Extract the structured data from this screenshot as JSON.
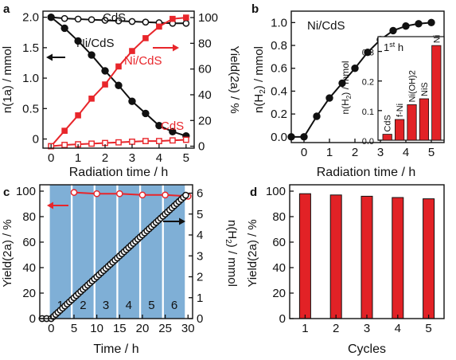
{
  "colors": {
    "black": "#111111",
    "red": "#e8262b",
    "bar_red": "#e22226",
    "band_blue": "#7fafd6"
  },
  "chart_data": [
    {
      "panel": "a",
      "type": "line",
      "xlabel": "Radiation time / h",
      "ylabel_left": "n(1a) / mmol",
      "ylabel_right": "Yield(2a) / %",
      "xlim": [
        -0.3,
        5.3
      ],
      "ylim_left": [
        -0.15,
        2.1
      ],
      "ylim_right": [
        -1.5,
        105
      ],
      "x_ticks": [
        "0",
        "1",
        "2",
        "3",
        "4",
        "5"
      ],
      "y_left_ticks": [
        "0",
        "0.5",
        "1.0",
        "1.5",
        "2.0"
      ],
      "y_right_ticks": [
        "0",
        "20",
        "40",
        "60",
        "80",
        "100"
      ],
      "series": [
        {
          "name": "CdS",
          "axis": "left",
          "color": "#111111",
          "marker": "open-circle",
          "x": [
            0,
            0.5,
            1,
            1.5,
            2,
            2.5,
            3,
            3.5,
            4,
            4.5,
            5
          ],
          "y": [
            2.0,
            1.98,
            1.97,
            1.96,
            1.95,
            1.94,
            1.93,
            1.92,
            1.91,
            1.9,
            1.9
          ]
        },
        {
          "name": "Ni/CdS",
          "axis": "left",
          "color": "#111111",
          "marker": "filled-circle",
          "x": [
            0,
            0.5,
            1,
            1.5,
            2,
            2.5,
            3,
            3.5,
            4,
            4.5,
            5
          ],
          "y": [
            2.0,
            1.82,
            1.61,
            1.38,
            1.12,
            0.88,
            0.62,
            0.42,
            0.22,
            0.12,
            0.05
          ]
        },
        {
          "name": "Ni/CdS",
          "axis": "right",
          "color": "#e8262b",
          "marker": "filled-square",
          "x": [
            0,
            0.5,
            1,
            1.5,
            2,
            2.5,
            3,
            3.5,
            4,
            4.5,
            5
          ],
          "y": [
            0,
            12,
            24,
            37,
            48,
            62,
            74,
            84,
            93,
            99,
            100
          ]
        },
        {
          "name": "CdS",
          "axis": "right",
          "color": "#e8262b",
          "marker": "open-square",
          "x": [
            0,
            0.5,
            1,
            1.5,
            2,
            2.5,
            3,
            3.5,
            4,
            4.5,
            5
          ],
          "y": [
            0,
            1,
            1.5,
            2,
            2.5,
            3,
            3.5,
            4,
            4,
            4.5,
            5
          ]
        }
      ],
      "annotations": [
        {
          "text": "CdS",
          "color": "#111111"
        },
        {
          "text": "Ni/CdS",
          "color": "#111111"
        },
        {
          "text": "Ni/CdS",
          "color": "#e8262b"
        },
        {
          "text": "CdS",
          "color": "#e8262b"
        }
      ]
    },
    {
      "panel": "b",
      "type": "line",
      "title": "Ni/CdS",
      "xlabel": "Radiation time / h",
      "ylabel": "n(H2) / mmol",
      "xlim": [
        -0.5,
        5.5
      ],
      "ylim": [
        -0.05,
        1.1
      ],
      "x_ticks": [
        "0",
        "1",
        "2",
        "3",
        "4",
        "5"
      ],
      "y_ticks": [
        "0.0",
        "0.2",
        "0.4",
        "0.6",
        "0.8",
        "1.0"
      ],
      "series": [
        {
          "name": "Ni/CdS",
          "color": "#111111",
          "marker": "filled-circle",
          "x": [
            -0.5,
            0,
            0.5,
            1,
            1.5,
            2,
            2.5,
            3,
            3.5,
            4,
            4.5,
            5
          ],
          "y": [
            0,
            0,
            0.18,
            0.34,
            0.47,
            0.6,
            0.74,
            0.85,
            0.93,
            0.97,
            0.99,
            1.0
          ]
        }
      ],
      "inset": {
        "type": "bar",
        "title": "1st h",
        "ylabel": "n(H2) / mmol",
        "ylim": [
          0,
          0.35
        ],
        "y_ticks": [
          "0.0",
          "0.1",
          "0.2",
          "0.3"
        ],
        "categories": [
          "CdS",
          "f-Ni",
          "Ni(OH)2",
          "NiS",
          "Ni"
        ],
        "values": [
          0.02,
          0.07,
          0.12,
          0.14,
          0.32
        ]
      }
    },
    {
      "panel": "c",
      "type": "line",
      "xlabel": "Time / h",
      "ylabel_left": "Yield(2a) / %",
      "ylabel_right": "n(H2) / mmol",
      "xlim": [
        -2.5,
        31
      ],
      "ylim_left": [
        0,
        105
      ],
      "ylim_right": [
        0,
        6.4
      ],
      "x_ticks": [
        "0",
        "5",
        "10",
        "15",
        "20",
        "25",
        "30"
      ],
      "y_left_ticks": [
        "0",
        "20",
        "40",
        "60",
        "80",
        "100"
      ],
      "y_right_ticks": [
        "0",
        "1",
        "2",
        "3",
        "4",
        "5",
        "6"
      ],
      "bands": [
        "1",
        "2",
        "3",
        "4",
        "5",
        "6"
      ],
      "series": [
        {
          "name": "Yield(2a)",
          "axis": "left",
          "color": "#e8262b",
          "marker": "open-circle",
          "x": [
            5,
            10,
            15,
            20,
            25,
            30
          ],
          "y": [
            99,
            98,
            98,
            97,
            97,
            96
          ]
        },
        {
          "name": "n(H2)",
          "axis": "right",
          "color": "#111111",
          "marker": "open-circle",
          "x": [
            -2,
            -1,
            0,
            0.5,
            1,
            1.5,
            2,
            2.5,
            3,
            3.5,
            4,
            4.5,
            5,
            5.5,
            6,
            6.5,
            7,
            7.5,
            8,
            8.5,
            9,
            9.5,
            10,
            10.5,
            11,
            11.5,
            12,
            12.5,
            13,
            13.5,
            14,
            14.5,
            15,
            15.5,
            16,
            16.5,
            17,
            17.5,
            18,
            18.5,
            19,
            19.5,
            20,
            20.5,
            21,
            21.5,
            22,
            22.5,
            23,
            23.5,
            24,
            24.5,
            25,
            25.5,
            26,
            26.5,
            27,
            27.5,
            28,
            28.5,
            29,
            29.5
          ],
          "y": [
            0,
            0,
            0,
            0.1,
            0.2,
            0.3,
            0.4,
            0.5,
            0.6,
            0.7,
            0.8,
            0.9,
            1.0,
            1.1,
            1.2,
            1.3,
            1.4,
            1.5,
            1.6,
            1.7,
            1.8,
            1.9,
            2.0,
            2.1,
            2.2,
            2.3,
            2.4,
            2.5,
            2.6,
            2.7,
            2.8,
            2.9,
            3.0,
            3.1,
            3.2,
            3.3,
            3.4,
            3.5,
            3.6,
            3.7,
            3.8,
            3.9,
            4.0,
            4.1,
            4.2,
            4.3,
            4.4,
            4.5,
            4.6,
            4.7,
            4.8,
            4.9,
            5.0,
            5.1,
            5.2,
            5.3,
            5.4,
            5.5,
            5.6,
            5.7,
            5.8,
            5.9
          ]
        }
      ]
    },
    {
      "panel": "d",
      "type": "bar",
      "xlabel": "Cycles",
      "ylabel": "Yield(2a) / %",
      "ylim": [
        0,
        105
      ],
      "y_ticks": [
        "0",
        "20",
        "40",
        "60",
        "80",
        "100"
      ],
      "categories": [
        "1",
        "2",
        "3",
        "4",
        "5"
      ],
      "values": [
        98,
        97,
        96,
        95,
        94
      ]
    }
  ],
  "panel_labels": [
    "a",
    "b",
    "c",
    "d"
  ]
}
